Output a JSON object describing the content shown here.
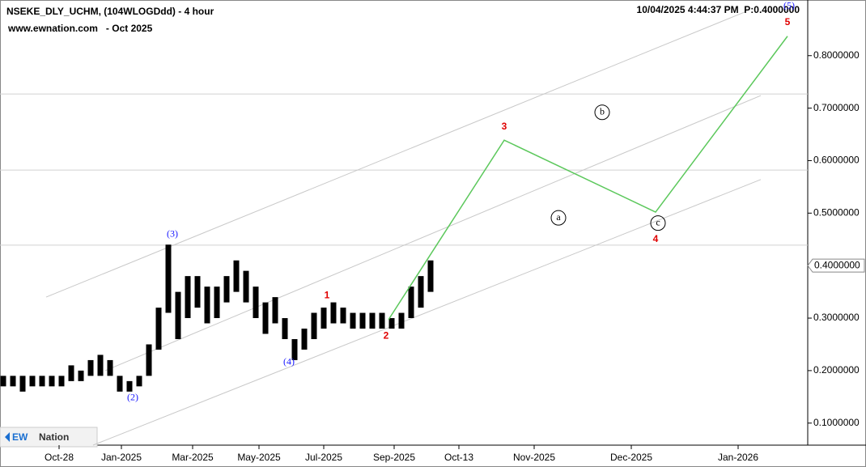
{
  "chart_data": {
    "type": "range-bar",
    "title": "NSEKE_DLY_UCHM, (104WLOGDdd) - 4 hour",
    "subtitle": "www.ewnation.com   - Oct 2025",
    "timestamp": "10/04/2025 4:44:37 PM  P:0.4000000",
    "logo": {
      "mark": "EW",
      "name": "Nation"
    },
    "color": "#000000",
    "x": [
      0.4,
      1.6,
      2.8,
      4.0,
      5.2,
      6.4,
      7.6,
      8.8,
      10.0,
      11.2,
      12.4,
      13.6,
      14.8,
      16.0,
      17.2,
      18.4,
      19.6,
      20.8,
      22.0,
      23.2,
      24.4,
      25.6,
      26.8,
      28.0,
      29.2,
      30.4,
      31.6,
      32.8,
      34.0,
      35.2,
      36.4,
      37.6,
      38.8,
      40.0,
      41.2,
      42.4,
      43.6,
      44.8,
      46.0,
      47.2,
      48.4,
      49.6,
      50.8,
      52.0,
      53.2
    ],
    "high": [
      0.19,
      0.19,
      0.19,
      0.19,
      0.19,
      0.19,
      0.19,
      0.21,
      0.2,
      0.22,
      0.23,
      0.22,
      0.19,
      0.18,
      0.19,
      0.25,
      0.32,
      0.44,
      0.35,
      0.38,
      0.38,
      0.36,
      0.36,
      0.38,
      0.41,
      0.39,
      0.36,
      0.33,
      0.34,
      0.3,
      0.26,
      0.28,
      0.31,
      0.32,
      0.33,
      0.32,
      0.31,
      0.31,
      0.31,
      0.31,
      0.3,
      0.31,
      0.36,
      0.38,
      0.41
    ],
    "low": [
      0.17,
      0.17,
      0.16,
      0.17,
      0.17,
      0.17,
      0.17,
      0.18,
      0.18,
      0.19,
      0.19,
      0.19,
      0.16,
      0.16,
      0.17,
      0.19,
      0.24,
      0.31,
      0.26,
      0.3,
      0.32,
      0.29,
      0.3,
      0.33,
      0.35,
      0.33,
      0.3,
      0.27,
      0.29,
      0.26,
      0.22,
      0.24,
      0.26,
      0.28,
      0.29,
      0.29,
      0.28,
      0.28,
      0.28,
      0.28,
      0.28,
      0.28,
      0.3,
      0.32,
      0.35
    ],
    "projection": {
      "color": "#5cc85c",
      "x": [
        48.0,
        62.3,
        81.0,
        97.3
      ],
      "values": [
        0.297,
        0.639,
        0.502,
        0.837
      ]
    },
    "trendlines": [
      {
        "x": [
          5.7,
          92.0
        ],
        "y": [
          0.34,
          0.883
        ]
      },
      {
        "x": [
          13.0,
          94.0
        ],
        "y": [
          0.2,
          0.724
        ]
      },
      {
        "x": [
          11.5,
          94.0
        ],
        "y": [
          0.058,
          0.564
        ]
      }
    ],
    "hlines": [
      0.727,
      0.582,
      0.439
    ],
    "annotations": [
      {
        "text": "(3)",
        "x": 21.3,
        "y": 0.459,
        "color": "#1a1aff",
        "style": "paren"
      },
      {
        "text": "(2)",
        "x": 16.4,
        "y": 0.148,
        "color": "#1a1aff",
        "style": "paren"
      },
      {
        "text": "(4)",
        "x": 35.7,
        "y": 0.216,
        "color": "#1a1aff",
        "style": "paren"
      },
      {
        "text": "(5)",
        "x": 97.5,
        "y": 0.894,
        "color": "#1a1aff",
        "style": "paren"
      },
      {
        "text": "1",
        "x": 40.4,
        "y": 0.343,
        "color": "#e00000",
        "style": "bold"
      },
      {
        "text": "2",
        "x": 47.7,
        "y": 0.266,
        "color": "#e00000",
        "style": "bold"
      },
      {
        "text": "3",
        "x": 62.3,
        "y": 0.664,
        "color": "#e00000",
        "style": "bold"
      },
      {
        "text": "4",
        "x": 81.0,
        "y": 0.45,
        "color": "#e00000",
        "style": "bold"
      },
      {
        "text": "5",
        "x": 97.3,
        "y": 0.863,
        "color": "#e00000",
        "style": "bold"
      },
      {
        "text": "a",
        "x": 69.0,
        "y": 0.491,
        "color": "#000000",
        "style": "circled"
      },
      {
        "text": "b",
        "x": 74.4,
        "y": 0.692,
        "color": "#000000",
        "style": "circled"
      },
      {
        "text": "c",
        "x": 81.3,
        "y": 0.481,
        "color": "#000000",
        "style": "circled"
      }
    ],
    "last_price": {
      "value": 0.4,
      "label": "0.4000000"
    },
    "xlim": [
      0,
      99.8
    ],
    "xticks": [
      {
        "value": 7.3,
        "label": "Oct-28"
      },
      {
        "value": 15.0,
        "label": "Jan-2025"
      },
      {
        "value": 23.8,
        "label": "Mar-2025"
      },
      {
        "value": 32.0,
        "label": "May-2025"
      },
      {
        "value": 40.0,
        "label": "Jul-2025"
      },
      {
        "value": 48.7,
        "label": "Sep-2025"
      },
      {
        "value": 56.7,
        "label": "Oct-13"
      },
      {
        "value": 66.0,
        "label": "Nov-2025"
      },
      {
        "value": 78.0,
        "label": "Dec-2025"
      },
      {
        "value": 91.2,
        "label": "Jan-2026"
      }
    ],
    "ylim": [
      0.058,
      0.906
    ],
    "yticks": [
      {
        "value": 0.1,
        "label": "0.1000000"
      },
      {
        "value": 0.2,
        "label": "0.2000000"
      },
      {
        "value": 0.3,
        "label": "0.3000000"
      },
      {
        "value": 0.5,
        "label": "0.5000000"
      },
      {
        "value": 0.6,
        "label": "0.6000000"
      },
      {
        "value": 0.7,
        "label": "0.7000000"
      },
      {
        "value": 0.8,
        "label": "0.8000000"
      }
    ]
  }
}
